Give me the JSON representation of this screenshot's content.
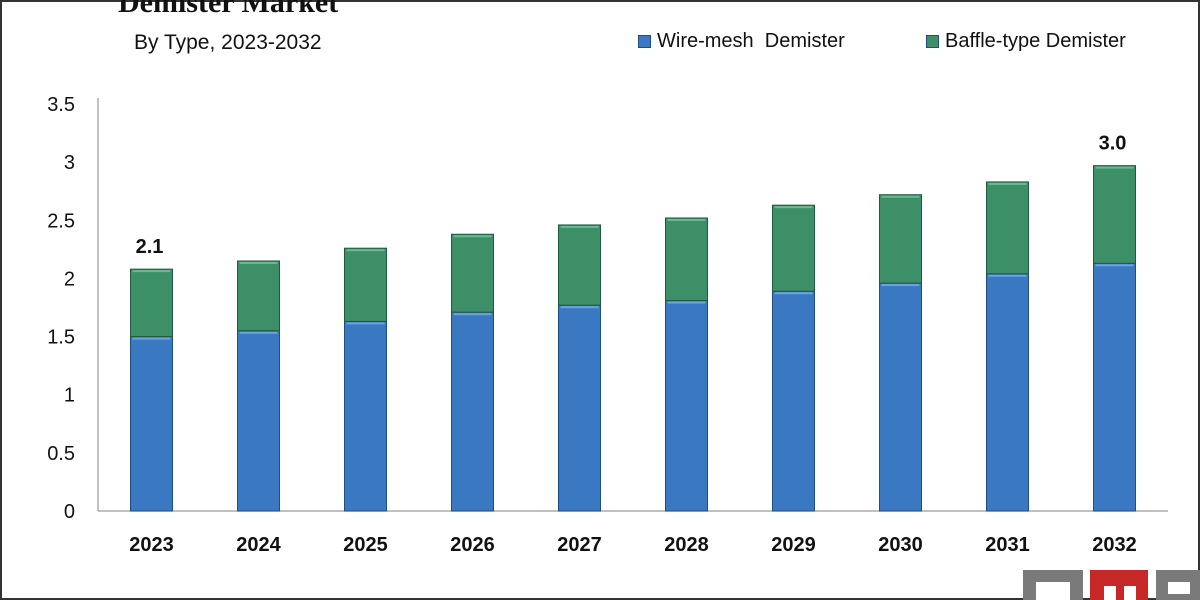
{
  "chart_data": {
    "type": "bar",
    "stacked": true,
    "title": "Demister Market",
    "subtitle": "By Type, 2023-2032",
    "categories": [
      "2023",
      "2024",
      "2025",
      "2026",
      "2027",
      "2028",
      "2029",
      "2030",
      "2031",
      "2032"
    ],
    "series": [
      {
        "name": "Wire-mesh  Demister",
        "color": "#3a78c2",
        "values": [
          1.5,
          1.55,
          1.63,
          1.71,
          1.77,
          1.81,
          1.89,
          1.96,
          2.04,
          2.13
        ]
      },
      {
        "name": "Baffle-type Demister",
        "color": "#3d8f68",
        "values": [
          0.58,
          0.6,
          0.63,
          0.67,
          0.69,
          0.71,
          0.74,
          0.76,
          0.79,
          0.84
        ]
      }
    ],
    "totals_labels": [
      {
        "category": "2023",
        "text": "2.1"
      },
      {
        "category": "2032",
        "text": "3.0"
      }
    ],
    "y_ticks": [
      "0",
      "0.5",
      "1",
      "1.5",
      "2",
      "2.5",
      "3",
      "3.5"
    ],
    "ylim": [
      0,
      3.5
    ],
    "grid": false,
    "legend_position": "top-right"
  },
  "logo": {
    "text": "MRFR"
  }
}
